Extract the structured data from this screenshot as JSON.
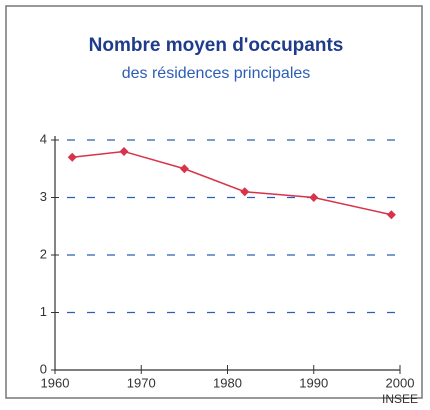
{
  "chart_data": {
    "type": "line",
    "title": "Nombre moyen d'occupants",
    "subtitle": "des résidences principales",
    "source": "INSEE",
    "x": [
      1962,
      1968,
      1975,
      1982,
      1990,
      1999
    ],
    "series": [
      {
        "name": "Nombre moyen d'occupants",
        "color": "#d8334a",
        "values": [
          3.7,
          3.8,
          3.5,
          3.1,
          3.0,
          2.7
        ]
      }
    ],
    "xlim": [
      1960,
      2000
    ],
    "xticks": [
      1960,
      1970,
      1980,
      1990,
      2000
    ],
    "ylim": [
      0,
      4
    ],
    "yticks": [
      0,
      1,
      2,
      3,
      4
    ],
    "grid": true,
    "grid_color": "#2a5db8"
  }
}
